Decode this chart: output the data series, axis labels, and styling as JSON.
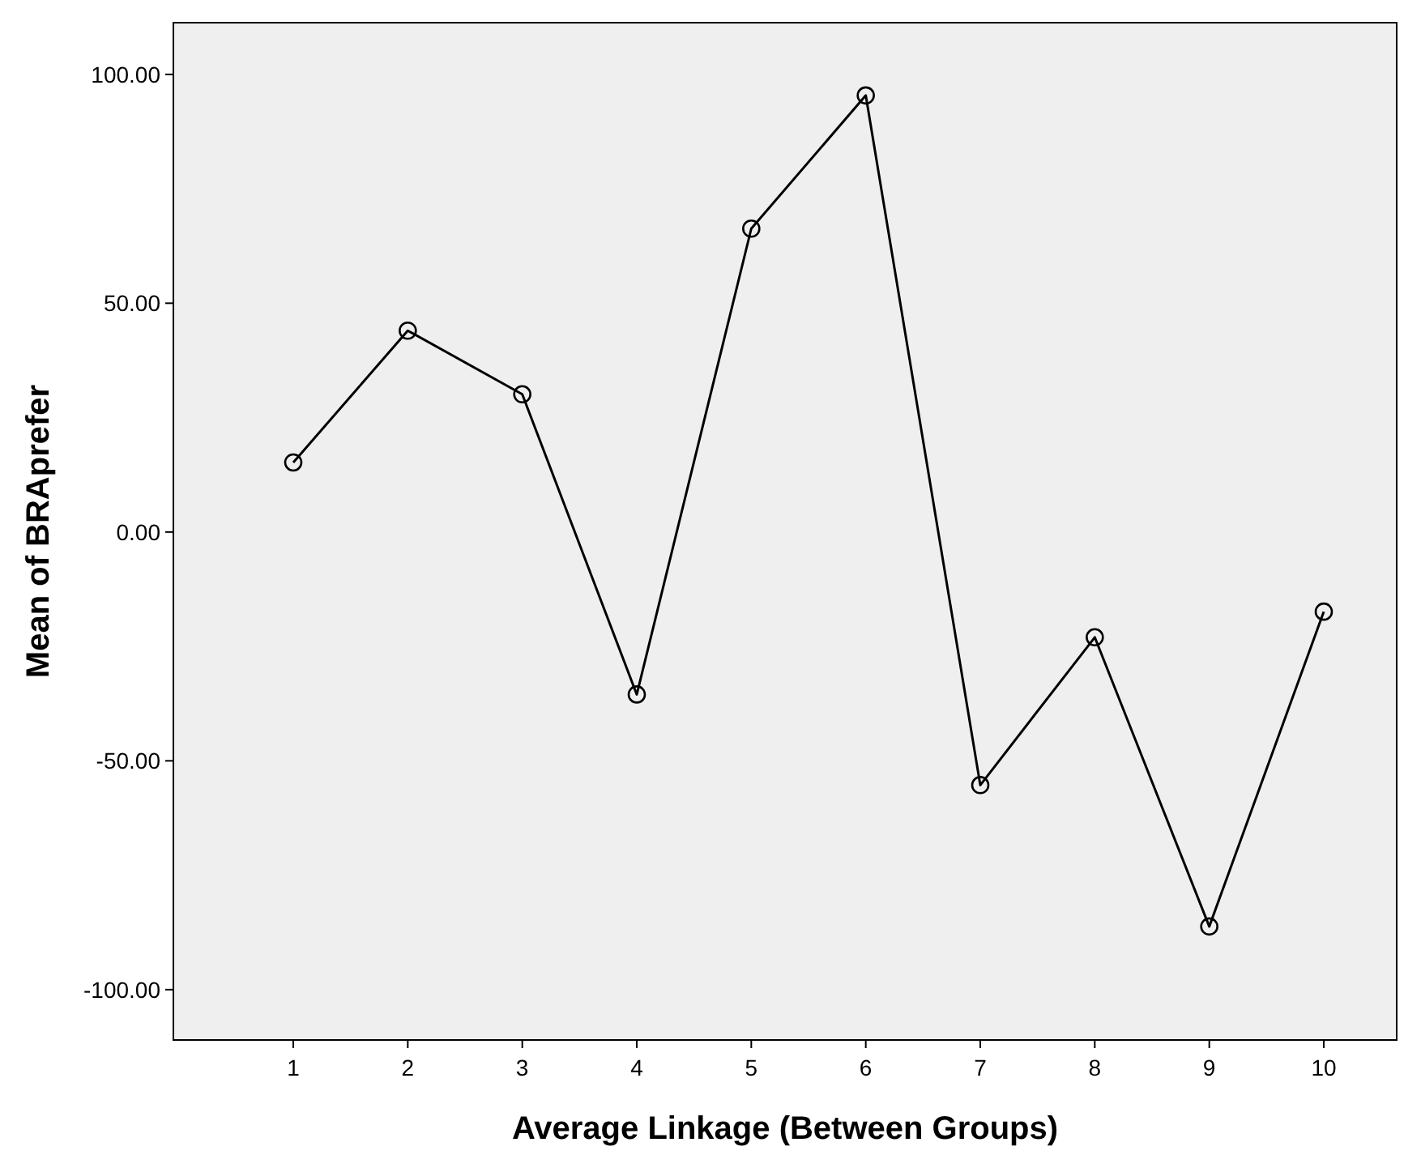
{
  "chart_data": {
    "type": "line",
    "xlabel": "Average Linkage (Between Groups)",
    "ylabel": "Mean of BRAprefer",
    "categories": [
      "1",
      "2",
      "3",
      "4",
      "5",
      "6",
      "7",
      "8",
      "9",
      "10"
    ],
    "series": [
      {
        "color": "#000000",
        "values": [
          15.2,
          44.0,
          30.1,
          -35.5,
          66.3,
          95.4,
          -55.3,
          -23.0,
          -86.2,
          -17.4
        ]
      }
    ],
    "ylim": [
      -111,
      111.3
    ],
    "yticks": [
      {
        "value": -100,
        "label": "-100.00"
      },
      {
        "value": -50,
        "label": "-50.00"
      },
      {
        "value": 0,
        "label": "0.00"
      },
      {
        "value": 50,
        "label": "50.00"
      },
      {
        "value": 100,
        "label": "100.00"
      }
    ],
    "grid": false,
    "marker": "circle",
    "line_style": "solid"
  }
}
